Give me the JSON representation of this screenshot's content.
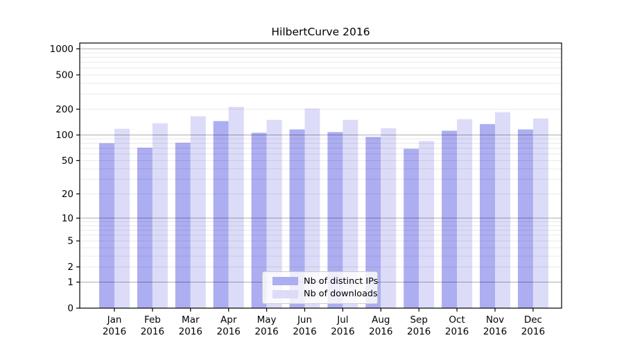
{
  "chart_data": {
    "type": "bar",
    "title": "HilbertCurve 2016",
    "categories": [
      "Jan",
      "Feb",
      "Mar",
      "Apr",
      "May",
      "Jun",
      "Jul",
      "Aug",
      "Sep",
      "Oct",
      "Nov",
      "Dec"
    ],
    "category_year": "2016",
    "series": [
      {
        "name": "Nb of distinct IPs",
        "color": "#adadf1",
        "values": [
          80,
          71,
          81,
          145,
          106,
          116,
          108,
          95,
          69,
          112,
          134,
          116
        ]
      },
      {
        "name": "Nb of downloads",
        "color": "#dcdcf9",
        "values": [
          118,
          137,
          165,
          213,
          150,
          203,
          150,
          120,
          85,
          153,
          184,
          156
        ]
      }
    ],
    "y_ticks": [
      1000,
      500,
      200,
      100,
      50,
      20,
      10,
      5,
      2,
      1,
      0
    ],
    "y_scale": "log1p",
    "ylim": [
      0,
      1200
    ],
    "grid": true,
    "legend_position": "lower center"
  }
}
